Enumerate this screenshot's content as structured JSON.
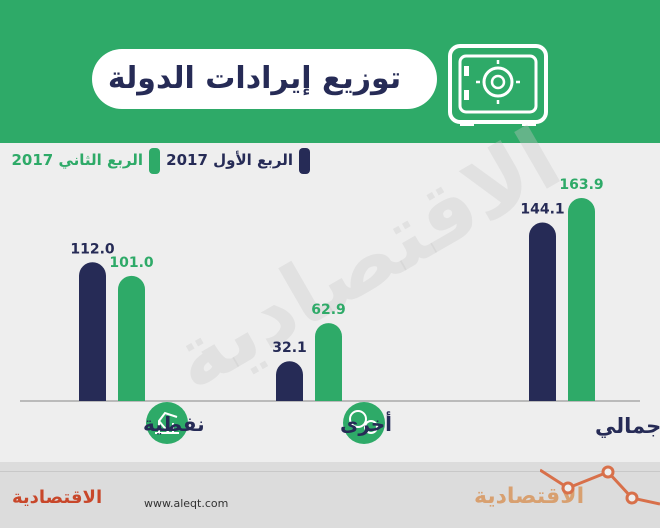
{
  "title": "توزيع إيرادات الدولة",
  "legend": {
    "q1": "الربع الأول 2017",
    "q2": "الربع الثاني 2017"
  },
  "colors": {
    "q1": "#262b56",
    "q2": "#2eaa68",
    "header": "#2eaa68"
  },
  "icons": [
    "safe-icon",
    "oil-pump-icon",
    "gears-icon"
  ],
  "watermark": "الاقتصادية",
  "footer": {
    "url": "www.aleqt.com",
    "logo_left": "الاقتصادية",
    "logo_right": "الاقتصادية"
  },
  "chart_data": {
    "type": "bar",
    "categories": [
      "نفطية",
      "أخرى",
      "الإجمالي"
    ],
    "series": [
      {
        "name": "الربع الأول 2017",
        "values": [
          112.0,
          32.1,
          144.1
        ]
      },
      {
        "name": "الربع الثاني 2017",
        "values": [
          101.0,
          62.9,
          163.9
        ]
      }
    ],
    "value_labels": [
      [
        "112.0",
        "32.1",
        "144.1"
      ],
      [
        "101.0",
        "62.9",
        "163.9"
      ]
    ],
    "ylim": [
      0,
      163.9
    ],
    "grid": false
  }
}
